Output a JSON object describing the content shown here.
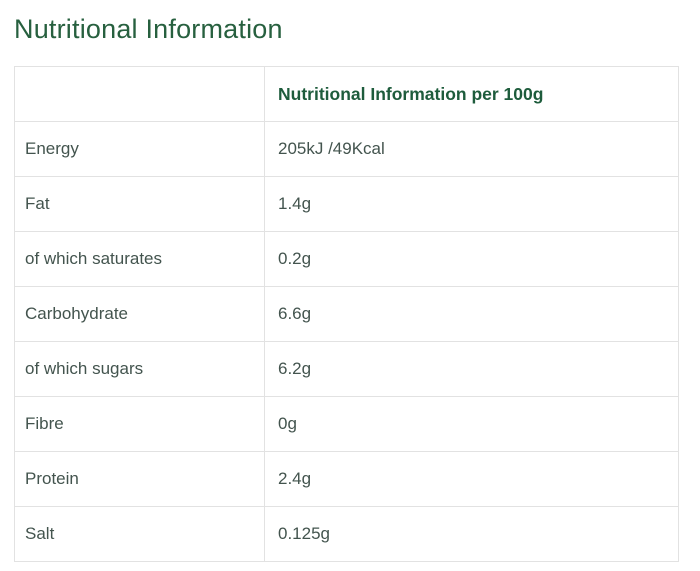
{
  "page_title": "Nutritional Information",
  "colors": {
    "title_green": "#27603f",
    "header_green": "#1e5c3c",
    "body_text": "#43544e",
    "border": "#e2e2e2"
  },
  "table": {
    "header": {
      "label_col": "",
      "value_col": "Nutritional Information per 100g"
    },
    "rows": [
      {
        "label": "Energy",
        "value": "205kJ /49Kcal"
      },
      {
        "label": "Fat",
        "value": "1.4g"
      },
      {
        "label": "of which saturates",
        "value": "0.2g"
      },
      {
        "label": "Carbohydrate",
        "value": "6.6g"
      },
      {
        "label": "of which sugars",
        "value": "6.2g"
      },
      {
        "label": "Fibre",
        "value": "0g"
      },
      {
        "label": "Protein",
        "value": "2.4g"
      },
      {
        "label": "Salt",
        "value": "0.125g"
      }
    ]
  }
}
